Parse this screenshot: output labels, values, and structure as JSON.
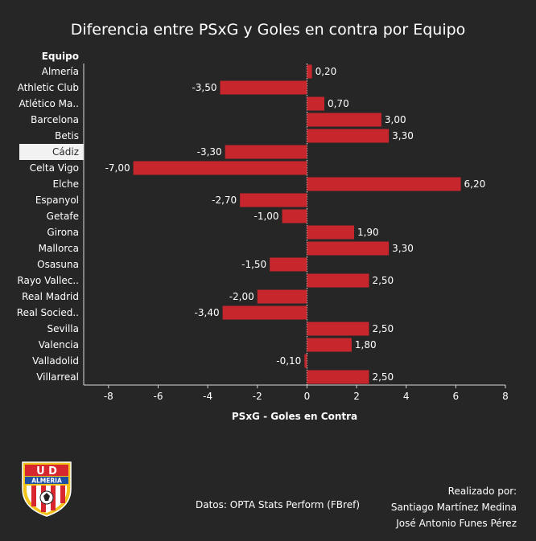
{
  "title": "Diferencia entre PSxG y Goles en contra por Equipo",
  "credits": {
    "heading": "Realizado por:",
    "author1": "Santiago Martínez Medina",
    "author2": "José Antonio Funes Pérez"
  },
  "source": "Datos: OPTA Stats Perform (FBref)",
  "logo": {
    "top_text": "U D",
    "band_text": "ALMERIA",
    "colors": {
      "red": "#d7262e",
      "gold": "#f2c21b",
      "white": "#ffffff"
    }
  },
  "chart_data": {
    "type": "bar",
    "orientation": "horizontal",
    "category_header": "Equipo",
    "xlabel": "PSxG - Goles en Contra",
    "xlim": [
      -9,
      8
    ],
    "xticks": [
      -8,
      -6,
      -4,
      -2,
      0,
      2,
      4,
      6,
      8
    ],
    "highlight": "Cádiz",
    "bar_color": "#c8262d",
    "categories": [
      "Almería",
      "Athletic Club",
      "Atlético Ma..",
      "Barcelona",
      "Betis",
      "Cádiz",
      "Celta Vigo",
      "Elche",
      "Espanyol",
      "Getafe",
      "Girona",
      "Mallorca",
      "Osasuna",
      "Rayo Vallec..",
      "Real Madrid",
      "Real Socied..",
      "Sevilla",
      "Valencia",
      "Valladolid",
      "Villarreal"
    ],
    "values": [
      0.2,
      -3.5,
      0.7,
      3.0,
      3.3,
      -3.3,
      -7.0,
      6.2,
      -2.7,
      -1.0,
      1.9,
      3.3,
      -1.5,
      2.5,
      -2.0,
      -3.4,
      2.5,
      1.8,
      -0.1,
      2.5
    ],
    "value_labels": [
      "0,20",
      "-3,50",
      "0,70",
      "3,00",
      "3,30",
      "-3,30",
      "-7,00",
      "6,20",
      "-2,70",
      "-1,00",
      "1,90",
      "3,30",
      "-1,50",
      "2,50",
      "-2,00",
      "-3,40",
      "2,50",
      "1,80",
      "-0,10",
      "2,50"
    ]
  }
}
